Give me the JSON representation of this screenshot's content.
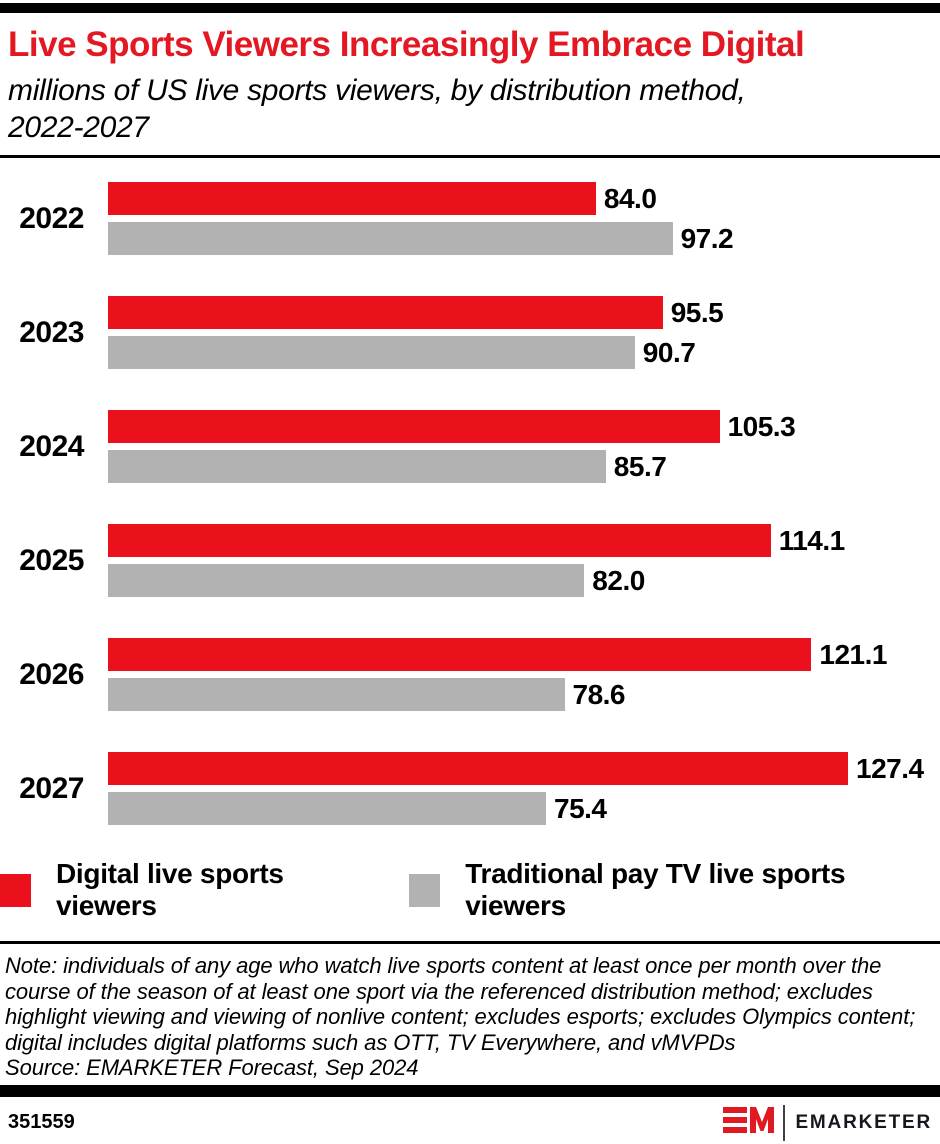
{
  "header": {
    "title": "Live Sports Viewers Increasingly Embrace Digital",
    "subtitle": "millions of US live sports viewers, by distribution method, 2022-2027"
  },
  "chart_data": {
    "type": "bar",
    "orientation": "horizontal",
    "title": "Live Sports Viewers Increasingly Embrace Digital",
    "subtitle": "millions of US live sports viewers, by distribution method, 2022-2027",
    "categories": [
      "2022",
      "2023",
      "2024",
      "2025",
      "2026",
      "2027"
    ],
    "series": [
      {
        "name": "Digital live sports viewers",
        "color": "#ea111d",
        "values": [
          84.0,
          95.5,
          105.3,
          114.1,
          121.1,
          127.4
        ]
      },
      {
        "name": "Traditional pay TV live sports viewers",
        "color": "#b3b2b2",
        "values": [
          97.2,
          90.7,
          85.7,
          82.0,
          78.6,
          75.4
        ]
      }
    ],
    "xlabel": "",
    "ylabel": "",
    "xlim": [
      0,
      127.4
    ],
    "grid": false,
    "legend_position": "bottom",
    "value_labels": "end_of_bar_one_decimal"
  },
  "legend": {
    "items": [
      {
        "label": "Digital live sports viewers",
        "color": "#ea111d"
      },
      {
        "label": "Traditional pay TV live sports viewers",
        "color": "#b3b2b2"
      }
    ]
  },
  "footnote": {
    "note": "Note: individuals of any age who watch live sports content at least once per month over the course of the season of at least one sport via the referenced distribution method; excludes highlight viewing and viewing of nonlive content; excludes esports; excludes Olympics content; digital includes digital platforms such as OTT, TV Everywhere, and vMVPDs",
    "source": "Source: EMARKETER Forecast, Sep 2024"
  },
  "footer": {
    "chart_id": "351559",
    "brand": "EMARKETER"
  },
  "colors": {
    "title_red": "#e31823",
    "bar_red": "#ea111d",
    "bar_gray": "#b3b2b2",
    "bars_black": "#000000"
  }
}
